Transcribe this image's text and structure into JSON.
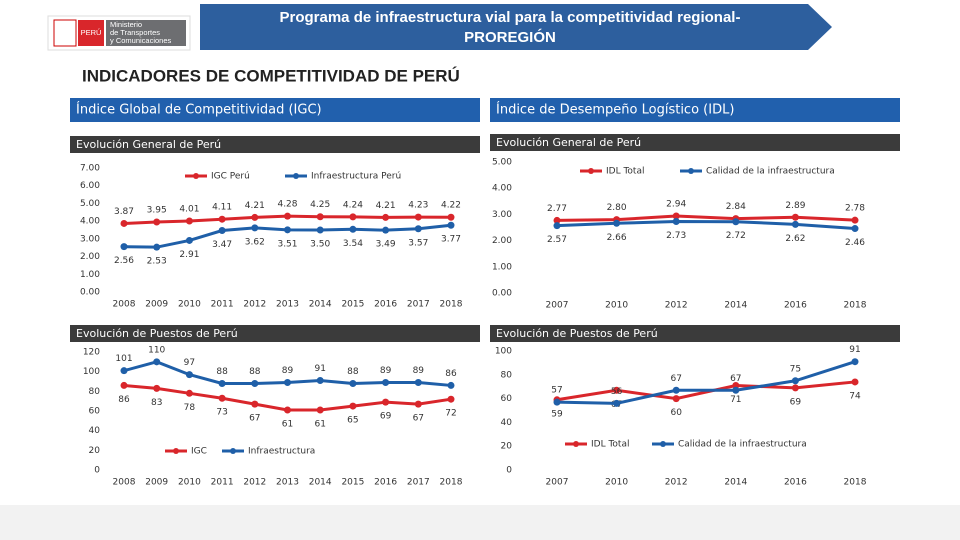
{
  "header": {
    "logo": "PERÚ",
    "ministry": [
      "Ministerio",
      "de Transportes",
      "y Comunicaciones"
    ],
    "title": [
      "Programa de infraestructura vial para la competitividad regional-",
      "PROREGIÓN"
    ],
    "subtitle": "INDICADORES DE COMPETITIVIDAD DE PERÚ"
  },
  "sections": [
    "Índice Global de Competitividad (IGC)",
    "Índice de Desempeño Logístico (IDL)"
  ],
  "chart_data": [
    {
      "type": "line",
      "title": "Evolución General de Perú",
      "categories": [
        "2008",
        "2009",
        "2010",
        "2011",
        "2012",
        "2013",
        "2014",
        "2015",
        "2016",
        "2017",
        "2018"
      ],
      "series": [
        {
          "name": "IGC Perú",
          "color": "#d9262b",
          "values": [
            3.87,
            3.95,
            4.01,
            4.11,
            4.21,
            4.28,
            4.25,
            4.24,
            4.21,
            4.23,
            4.22
          ]
        },
        {
          "name": "Infraestructura Perú",
          "color": "#1f5fa8",
          "values": [
            2.56,
            2.53,
            2.91,
            3.47,
            3.62,
            3.51,
            3.5,
            3.54,
            3.49,
            3.57,
            3.77
          ],
          "value_labels": [
            "2.56",
            "2.53",
            "2.91",
            "3.47",
            "3.62",
            "3.51",
            "3.50",
            "3.54",
            "3.49",
            "3.57",
            "3.77"
          ]
        }
      ],
      "ylim": [
        0,
        7
      ],
      "yticks": [
        {
          "value": 0,
          "label": "0.00"
        },
        {
          "value": 1,
          "label": "1.00"
        },
        {
          "value": 2,
          "label": "2.00"
        },
        {
          "value": 3,
          "label": "3.00"
        },
        {
          "value": 4,
          "label": "4.00"
        },
        {
          "value": 5,
          "label": "5.00"
        },
        {
          "value": 6,
          "label": "6.00"
        },
        {
          "value": 7,
          "label": "7.00"
        }
      ],
      "legend": "top"
    },
    {
      "type": "line",
      "title": "Evolución General de Perú",
      "categories": [
        "2007",
        "2010",
        "2012",
        "2014",
        "2016",
        "2018"
      ],
      "series": [
        {
          "name": "IDL Total",
          "color": "#d9262b",
          "values": [
            2.77,
            2.8,
            2.94,
            2.84,
            2.89,
            2.78
          ],
          "value_labels": [
            "2.77",
            "2.80",
            "2.94",
            "2.84",
            "2.89",
            "2.78"
          ]
        },
        {
          "name": "Calidad de la infraestructura",
          "color": "#1f5fa8",
          "values": [
            2.57,
            2.66,
            2.73,
            2.72,
            2.62,
            2.46
          ]
        }
      ],
      "ylim": [
        0,
        5
      ],
      "yticks": [
        {
          "value": 0,
          "label": "0.00"
        },
        {
          "value": 1,
          "label": "1.00"
        },
        {
          "value": 2,
          "label": "2.00"
        },
        {
          "value": 3,
          "label": "3.00"
        },
        {
          "value": 4,
          "label": "4.00"
        },
        {
          "value": 5,
          "label": "5.00"
        }
      ],
      "legend": "top"
    },
    {
      "type": "line",
      "title": "Evolución de Puestos de Perú",
      "categories": [
        "2008",
        "2009",
        "2010",
        "2011",
        "2012",
        "2013",
        "2014",
        "2015",
        "2016",
        "2017",
        "2018"
      ],
      "series": [
        {
          "name": "IGC",
          "color": "#d9262b",
          "values": [
            86,
            83,
            78,
            73,
            67,
            61,
            61,
            65,
            69,
            67,
            72
          ]
        },
        {
          "name": "Infraestructura",
          "color": "#1f5fa8",
          "values": [
            101,
            110,
            97,
            88,
            88,
            89,
            91,
            88,
            89,
            89,
            86
          ]
        }
      ],
      "ylim": [
        0,
        120
      ],
      "yticks": [
        0,
        20,
        40,
        60,
        80,
        100,
        120
      ],
      "legend": "bottom"
    },
    {
      "type": "line",
      "title": "Evolución de Puestos de Perú",
      "categories": [
        "2007",
        "2010",
        "2012",
        "2014",
        "2016",
        "2018"
      ],
      "series": [
        {
          "name": "IDL Total",
          "color": "#d9262b",
          "values": [
            59,
            67,
            60,
            71,
            69,
            74
          ]
        },
        {
          "name": "Calidad de la infraestructura",
          "color": "#1f5fa8",
          "values": [
            57,
            56,
            67,
            67,
            75,
            91
          ]
        }
      ],
      "ylim": [
        0,
        100
      ],
      "yticks": [
        0,
        20,
        40,
        60,
        80,
        100
      ],
      "legend": "bottom"
    }
  ]
}
